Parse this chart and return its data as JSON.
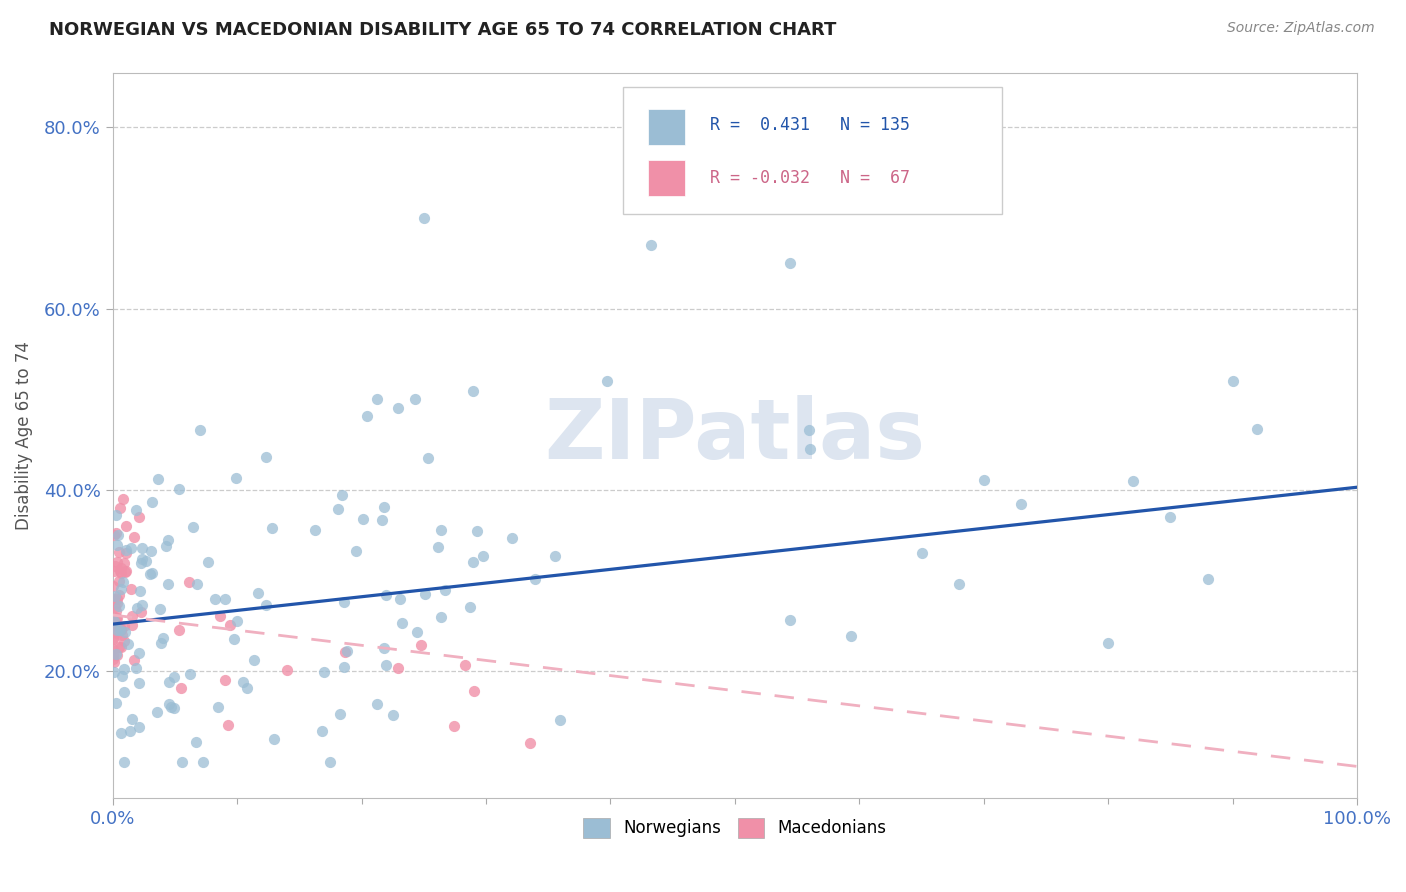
{
  "title": "NORWEGIAN VS MACEDONIAN DISABILITY AGE 65 TO 74 CORRELATION CHART",
  "source": "Source: ZipAtlas.com",
  "ylabel": "Disability Age 65 to 74",
  "r_norwegian": 0.431,
  "n_norwegian": 135,
  "r_macedonian": -0.032,
  "n_macedonian": 67,
  "norwegian_scatter_color": "#9bbdd4",
  "macedonian_scatter_color": "#f090a8",
  "norwegian_line_color": "#2255aa",
  "macedonian_line_color": "#f0b0c0",
  "background_color": "#ffffff",
  "grid_color": "#cccccc",
  "title_color": "#222222",
  "axis_tick_color": "#4472c4",
  "watermark_color": "#dde5f0",
  "xlim": [
    0.0,
    1.0
  ],
  "ylim": [
    0.06,
    0.86
  ],
  "yticks": [
    0.2,
    0.4,
    0.6,
    0.8
  ],
  "ytick_labels": [
    "20.0%",
    "40.0%",
    "60.0%",
    "80.0%"
  ],
  "xtick_labels": [
    "0.0%",
    "100.0%"
  ],
  "nor_trend_y0": 0.252,
  "nor_trend_y1": 0.403,
  "mac_trend_y0": 0.262,
  "mac_trend_y1": 0.095,
  "nor_seed": 12,
  "mac_seed": 77
}
